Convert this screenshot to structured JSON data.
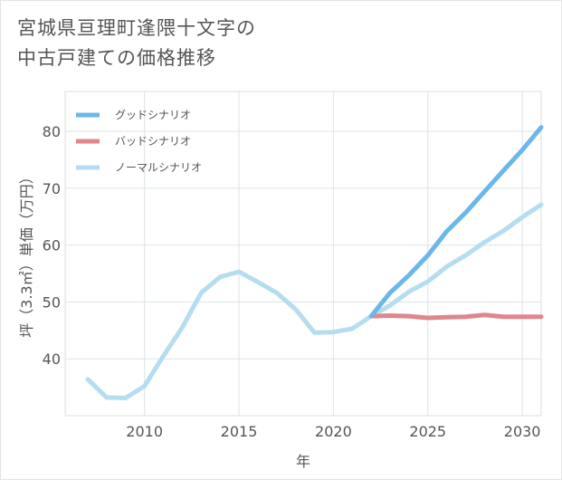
{
  "title_line1": "宮城県亘理町逢隈十文字の",
  "title_line2": "中古戸建ての価格推移",
  "chart_data": {
    "type": "line",
    "title": "宮城県亘理町逢隈十文字の中古戸建ての価格推移",
    "xlabel": "年",
    "ylabel": "坪（3.3㎡）単価（万円）",
    "xlim": [
      2005.8,
      2031
    ],
    "ylim": [
      30,
      87
    ],
    "xticks": [
      2010,
      2015,
      2020,
      2025,
      2030
    ],
    "yticks": [
      40,
      50,
      60,
      70,
      80
    ],
    "legend_position": "top-left",
    "series": [
      {
        "name": "グッドシナリオ",
        "color": "#6cb7ea",
        "x": [
          2022,
          2023,
          2024,
          2025,
          2026,
          2027,
          2028,
          2029,
          2030,
          2031
        ],
        "y": [
          47.5,
          51.6,
          54.7,
          58.2,
          62.4,
          65.7,
          69.4,
          73.1,
          76.7,
          80.7
        ]
      },
      {
        "name": "バッドシナリオ",
        "color": "#e0868d",
        "x": [
          2022,
          2023,
          2024,
          2025,
          2026,
          2027,
          2028,
          2029,
          2030,
          2031
        ],
        "y": [
          47.5,
          47.6,
          47.5,
          47.2,
          47.3,
          47.4,
          47.7,
          47.4,
          47.4,
          47.4
        ]
      },
      {
        "name": "ノーマルシナリオ",
        "color": "#b5ddef",
        "x": [
          2007,
          2008,
          2009,
          2010,
          2011,
          2012,
          2013,
          2014,
          2015,
          2016,
          2017,
          2018,
          2019,
          2020,
          2021,
          2022,
          2023,
          2024,
          2025,
          2026,
          2027,
          2028,
          2029,
          2030,
          2031
        ],
        "y": [
          36.4,
          33.2,
          33.1,
          35.2,
          40.5,
          45.5,
          51.6,
          54.4,
          55.3,
          53.5,
          51.6,
          48.7,
          44.6,
          44.7,
          45.3,
          47.5,
          49.4,
          51.8,
          53.6,
          56.2,
          58.2,
          60.5,
          62.5,
          64.9,
          67.1
        ]
      }
    ]
  }
}
